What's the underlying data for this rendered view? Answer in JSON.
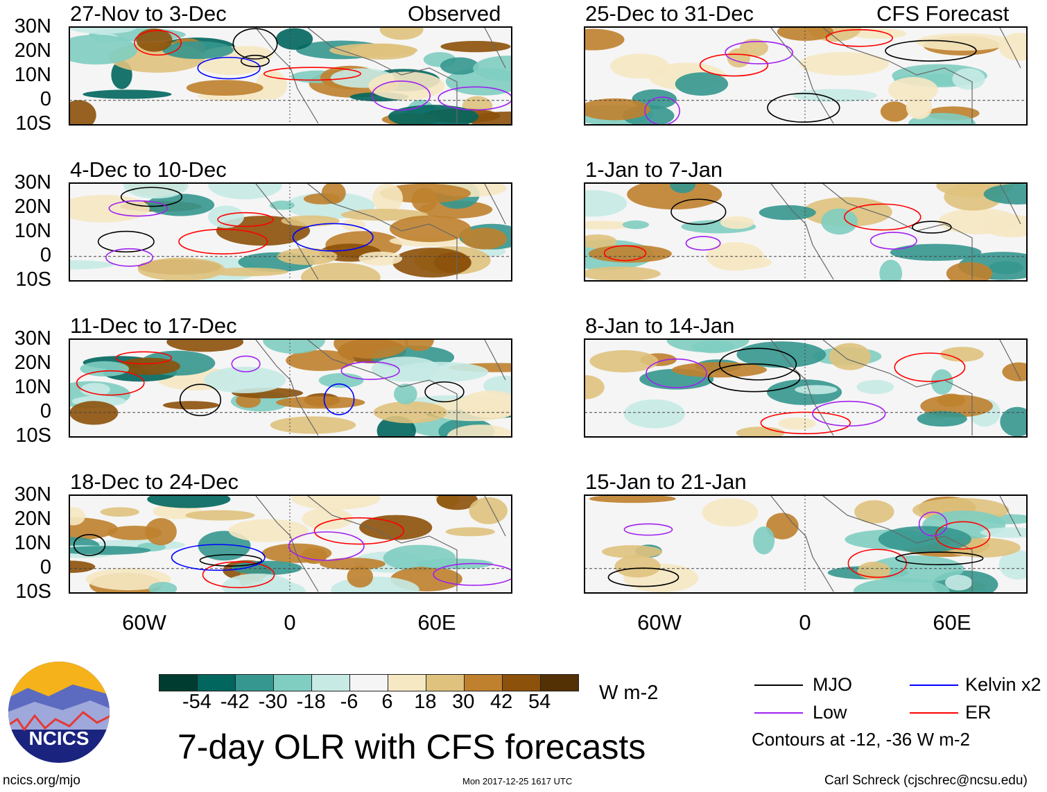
{
  "header": {
    "observed_label": "Observed",
    "forecast_label": "CFS Forecast"
  },
  "panels": {
    "observed": [
      {
        "title": "27-Nov to 3-Dec"
      },
      {
        "title": "4-Dec to 10-Dec"
      },
      {
        "title": "11-Dec to 17-Dec"
      },
      {
        "title": "18-Dec to 24-Dec"
      }
    ],
    "forecast": [
      {
        "title": "25-Dec to 31-Dec"
      },
      {
        "title": "1-Jan to 7-Jan"
      },
      {
        "title": "8-Jan to 14-Jan"
      },
      {
        "title": "15-Jan to 21-Jan"
      }
    ]
  },
  "axes": {
    "lat_labels": [
      "30N",
      "20N",
      "10N",
      "0",
      "10S"
    ],
    "lon_labels": [
      "60W",
      "0",
      "60E"
    ]
  },
  "colorbar": {
    "colors": [
      "#003d30",
      "#01665e",
      "#35978f",
      "#80cdc1",
      "#c7eae5",
      "#f5f5f5",
      "#f6e8c3",
      "#dfc27d",
      "#bf812d",
      "#8c510a",
      "#543005"
    ],
    "labels": [
      "-54",
      "-42",
      "-30",
      "-18",
      "-6",
      "6",
      "18",
      "30",
      "42",
      "54"
    ],
    "units": "W m-2"
  },
  "legend": {
    "items": [
      {
        "label": "MJO",
        "color": "#000000"
      },
      {
        "label": "Kelvin x2",
        "color": "#0000ff"
      },
      {
        "label": "Low",
        "color": "#a020f0"
      },
      {
        "label": "ER",
        "color": "#ff0000"
      }
    ],
    "note": "Contours at -12, -36 W m-2"
  },
  "footer": {
    "title": "7-day OLR with CFS forecasts",
    "logo_text": "NCICS",
    "site": "ncics.org/mjo",
    "timestamp": "Mon 2017-12-25 1617 UTC",
    "credit": "Carl Schreck (cjschrec@ncsu.edu)"
  }
}
